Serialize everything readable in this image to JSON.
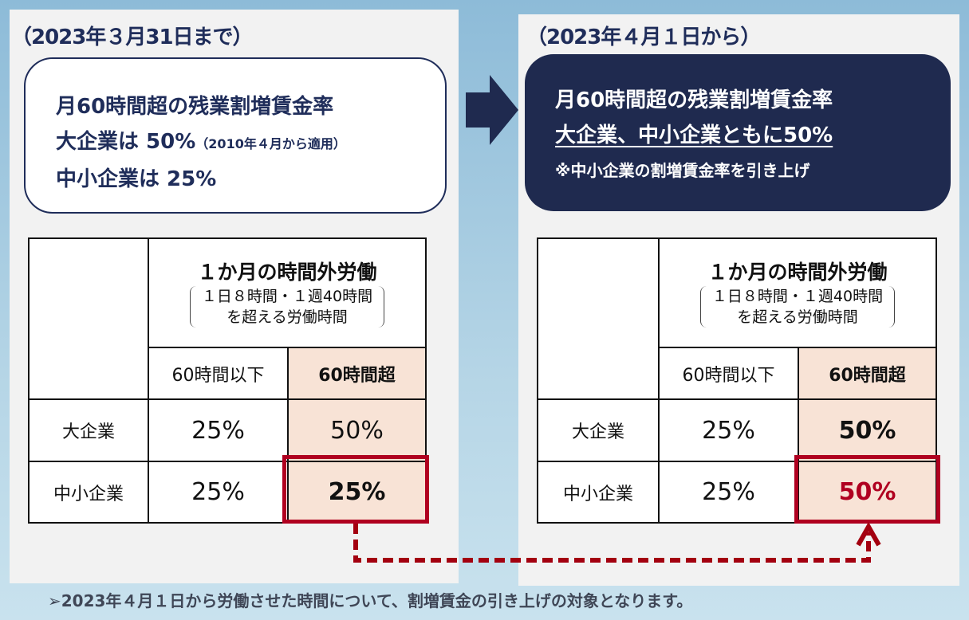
{
  "before": {
    "title": "（2023年３月31日まで）",
    "line1": "月60時間超の残業割増賃金率",
    "line2": "大企業は 50%",
    "line2_note": "（2010年４月から適用）",
    "line3": "中小企業は 25%",
    "table": {
      "header": "１か月の時間外労働",
      "subheader1": "１日８時間・１週40時間",
      "subheader2": "を超える労働時間",
      "col1": "60時間以下",
      "col2": "60時間超",
      "rows": [
        {
          "label": "大企業",
          "v1": "25%",
          "v2": "50%"
        },
        {
          "label": "中小企業",
          "v1": "25%",
          "v2": "25%"
        }
      ]
    }
  },
  "after": {
    "title": "（2023年４月１日から）",
    "line1": "月60時間超の残業割増賃金率",
    "line2": "大企業、中小企業ともに50%",
    "line3": "※中小企業の割増賃金率を引き上げ",
    "table": {
      "header": "１か月の時間外労働",
      "subheader1": "１日８時間・１週40時間",
      "subheader2": "を超える労働時間",
      "col1": "60時間以下",
      "col2": "60時間超",
      "rows": [
        {
          "label": "大企業",
          "v1": "25%",
          "v2": "50%"
        },
        {
          "label": "中小企業",
          "v1": "25%",
          "v2": "50%"
        }
      ]
    }
  },
  "footer": "➢2023年４月１日から労働させた時間について、割増賃金の引き上げの対象となります。",
  "colors": {
    "navy": "#1f2a4f",
    "red": "#b00020",
    "peach": "#f8e3d6"
  }
}
